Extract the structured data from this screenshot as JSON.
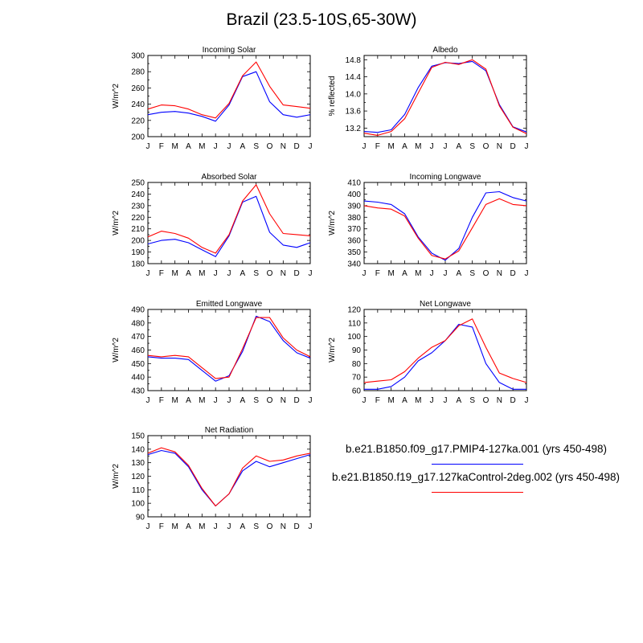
{
  "figure": {
    "title": "Brazil (23.5-10S,65-30W)"
  },
  "legend": [
    {
      "label": "b.e21.B1850.f09_g17.PMIP4-127ka.001 (yrs 450-498)",
      "color": "#0000ff"
    },
    {
      "label": "b.e21.B1850.f19_g17.127kaControl-2deg.002 (yrs 450-498)",
      "color": "#ff0000"
    }
  ],
  "chart_data": [
    {
      "type": "line",
      "title": "Incoming Solar",
      "ylabel": "W/m^2",
      "ylim": [
        200,
        300
      ],
      "yticks": [
        200,
        220,
        240,
        260,
        280,
        300
      ],
      "categories": [
        "J",
        "F",
        "M",
        "A",
        "M",
        "J",
        "J",
        "A",
        "S",
        "O",
        "N",
        "D",
        "J"
      ],
      "series": [
        {
          "name": "b.e21.B1850.f09_g17.PMIP4-127ka.001",
          "color": "#0000ff",
          "values": [
            227,
            230,
            231,
            229,
            225,
            219,
            239,
            274,
            280,
            243,
            227,
            224,
            227
          ]
        },
        {
          "name": "b.e21.B1850.f19_g17.127kaControl-2deg.002",
          "color": "#ff0000",
          "values": [
            234,
            239,
            238,
            234,
            227,
            223,
            241,
            275,
            292,
            262,
            239,
            237,
            235
          ]
        }
      ]
    },
    {
      "type": "line",
      "title": "Albedo",
      "ylabel": "% reflected",
      "ylim": [
        13.0,
        14.9
      ],
      "yticks": [
        13.2,
        13.6,
        14.0,
        14.4,
        14.8
      ],
      "categories": [
        "J",
        "F",
        "M",
        "A",
        "M",
        "J",
        "J",
        "A",
        "S",
        "O",
        "N",
        "D",
        "J"
      ],
      "series": [
        {
          "name": "b.e21.B1850.f09_g17.PMIP4-127ka.001",
          "color": "#0000ff",
          "values": [
            13.12,
            13.1,
            13.16,
            13.52,
            14.15,
            14.65,
            14.73,
            14.71,
            14.76,
            14.54,
            13.75,
            13.23,
            13.11
          ]
        },
        {
          "name": "b.e21.B1850.f19_g17.127kaControl-2deg.002",
          "color": "#ff0000",
          "values": [
            13.08,
            13.03,
            13.12,
            13.42,
            14.02,
            14.62,
            14.74,
            14.69,
            14.8,
            14.58,
            13.72,
            13.22,
            13.07
          ]
        }
      ]
    },
    {
      "type": "line",
      "title": "Absorbed Solar",
      "ylabel": "W/m^2",
      "ylim": [
        180,
        250
      ],
      "yticks": [
        180,
        190,
        200,
        210,
        220,
        230,
        240,
        250
      ],
      "categories": [
        "J",
        "F",
        "M",
        "A",
        "M",
        "J",
        "J",
        "A",
        "S",
        "O",
        "N",
        "D",
        "J"
      ],
      "series": [
        {
          "name": "b.e21.B1850.f09_g17.PMIP4-127ka.001",
          "color": "#0000ff",
          "values": [
            197,
            200,
            201,
            198,
            192,
            186,
            204,
            233,
            238,
            207,
            196,
            194,
            198
          ]
        },
        {
          "name": "b.e21.B1850.f19_g17.127kaControl-2deg.002",
          "color": "#ff0000",
          "values": [
            203,
            208,
            206,
            202,
            194,
            189,
            205,
            234,
            248,
            223,
            206,
            205,
            204
          ]
        }
      ]
    },
    {
      "type": "line",
      "title": "Incoming Longwave",
      "ylabel": "W/m^2",
      "ylim": [
        340,
        410
      ],
      "yticks": [
        340,
        350,
        360,
        370,
        380,
        390,
        400,
        410
      ],
      "categories": [
        "J",
        "F",
        "M",
        "A",
        "M",
        "J",
        "J",
        "A",
        "S",
        "O",
        "N",
        "D",
        "J"
      ],
      "series": [
        {
          "name": "b.e21.B1850.f09_g17.PMIP4-127ka.001",
          "color": "#0000ff",
          "values": [
            394,
            393,
            391,
            383,
            363,
            349,
            343,
            353,
            380,
            401,
            402,
            397,
            394
          ]
        },
        {
          "name": "b.e21.B1850.f19_g17.127kaControl-2deg.002",
          "color": "#ff0000",
          "values": [
            390,
            388,
            387,
            381,
            362,
            347,
            344,
            351,
            371,
            391,
            396,
            391,
            390
          ]
        }
      ]
    },
    {
      "type": "line",
      "title": "Emitted Longwave",
      "ylabel": "W/m^2",
      "ylim": [
        430,
        490
      ],
      "yticks": [
        430,
        440,
        450,
        460,
        470,
        480,
        490
      ],
      "categories": [
        "J",
        "F",
        "M",
        "A",
        "M",
        "J",
        "J",
        "A",
        "S",
        "O",
        "N",
        "D",
        "J"
      ],
      "series": [
        {
          "name": "b.e21.B1850.f09_g17.PMIP4-127ka.001",
          "color": "#0000ff",
          "values": [
            455,
            454,
            454,
            453,
            445,
            437,
            441,
            459,
            485,
            481,
            467,
            458,
            454
          ]
        },
        {
          "name": "b.e21.B1850.f19_g17.127kaControl-2deg.002",
          "color": "#ff0000",
          "values": [
            456,
            455,
            456,
            455,
            447,
            439,
            440,
            461,
            484,
            484,
            469,
            460,
            455
          ]
        }
      ]
    },
    {
      "type": "line",
      "title": "Net Longwave",
      "ylabel": "W/m^2",
      "ylim": [
        60,
        120
      ],
      "yticks": [
        60,
        70,
        80,
        90,
        100,
        110,
        120
      ],
      "categories": [
        "J",
        "F",
        "M",
        "A",
        "M",
        "J",
        "J",
        "A",
        "S",
        "O",
        "N",
        "D",
        "J"
      ],
      "series": [
        {
          "name": "b.e21.B1850.f09_g17.PMIP4-127ka.001",
          "color": "#0000ff",
          "values": [
            61,
            61,
            63,
            70,
            82,
            88,
            97,
            109,
            107,
            80,
            66,
            61,
            61
          ]
        },
        {
          "name": "b.e21.B1850.f19_g17.127kaControl-2deg.002",
          "color": "#ff0000",
          "values": [
            66,
            67,
            68,
            74,
            84,
            92,
            97,
            108,
            113,
            92,
            73,
            69,
            66
          ]
        }
      ]
    },
    {
      "type": "line",
      "title": "Net Radiation",
      "ylabel": "W/m^2",
      "ylim": [
        90,
        150
      ],
      "yticks": [
        90,
        100,
        110,
        120,
        130,
        140,
        150
      ],
      "categories": [
        "J",
        "F",
        "M",
        "A",
        "M",
        "J",
        "J",
        "A",
        "S",
        "O",
        "N",
        "D",
        "J"
      ],
      "series": [
        {
          "name": "b.e21.B1850.f09_g17.PMIP4-127ka.001",
          "color": "#0000ff",
          "values": [
            136,
            139,
            137,
            127,
            110,
            98,
            107,
            124,
            131,
            127,
            130,
            133,
            136
          ]
        },
        {
          "name": "b.e21.B1850.f19_g17.127kaControl-2deg.002",
          "color": "#ff0000",
          "values": [
            137,
            141,
            138,
            128,
            111,
            98,
            107,
            126,
            135,
            131,
            132,
            135,
            137
          ]
        }
      ]
    }
  ]
}
